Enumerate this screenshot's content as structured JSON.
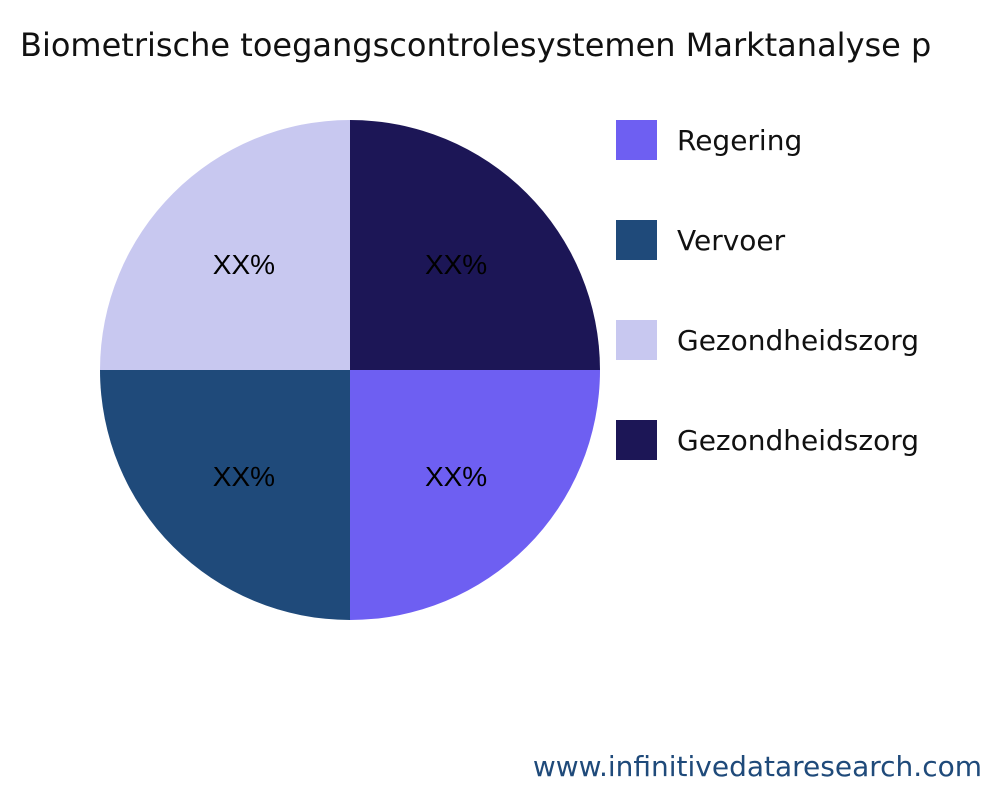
{
  "chart_data": {
    "type": "pie",
    "title": "Biometrische toegangscontrolesystemen Marktanalyse p",
    "slices": [
      {
        "name": "Regering",
        "value": 25,
        "label": "XX%",
        "color": "#6e5ff2"
      },
      {
        "name": "Vervoer",
        "value": 25,
        "label": "XX%",
        "color": "#1f4a7a"
      },
      {
        "name": "Gezondheidszorg",
        "value": 25,
        "label": "XX%",
        "color": "#c8c8f0"
      },
      {
        "name": "Gezondheidszorg",
        "value": 25,
        "label": "XX%",
        "color": "#1c1656"
      }
    ],
    "legend_position": "right"
  },
  "footer": "www.infinitivedataresearch.com"
}
